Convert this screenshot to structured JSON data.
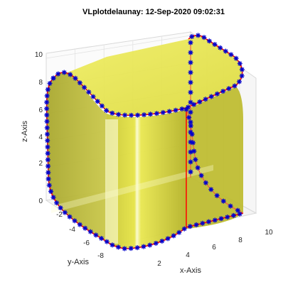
{
  "chart_data": {
    "type": "surface3d",
    "title": "VLplotdelaunay: 12-Sep-2020 09:02:31",
    "xlabel": "x-Axis",
    "ylabel": "y-Axis",
    "zlabel": "z-Axis",
    "xlim": [
      0,
      10
    ],
    "ylim": [
      -10,
      0
    ],
    "zlim": [
      0,
      10
    ],
    "x_ticks": [
      "2",
      "4",
      "6",
      "8",
      "10"
    ],
    "y_ticks": [
      "-2",
      "-4",
      "-6",
      "-8"
    ],
    "z_ticks": [
      "0",
      "2",
      "4",
      "6",
      "8",
      "10"
    ],
    "grid": true,
    "colors": {
      "surface": "#e4e23a",
      "edge": "#ff0000",
      "marker": "#0000cc",
      "box": "#d9d9d9"
    },
    "series": [
      {
        "style": "surface",
        "shape": "rounded box (Delaunay triangulated)"
      },
      {
        "style": "red edge lines with blue asterisk markers"
      }
    ]
  }
}
